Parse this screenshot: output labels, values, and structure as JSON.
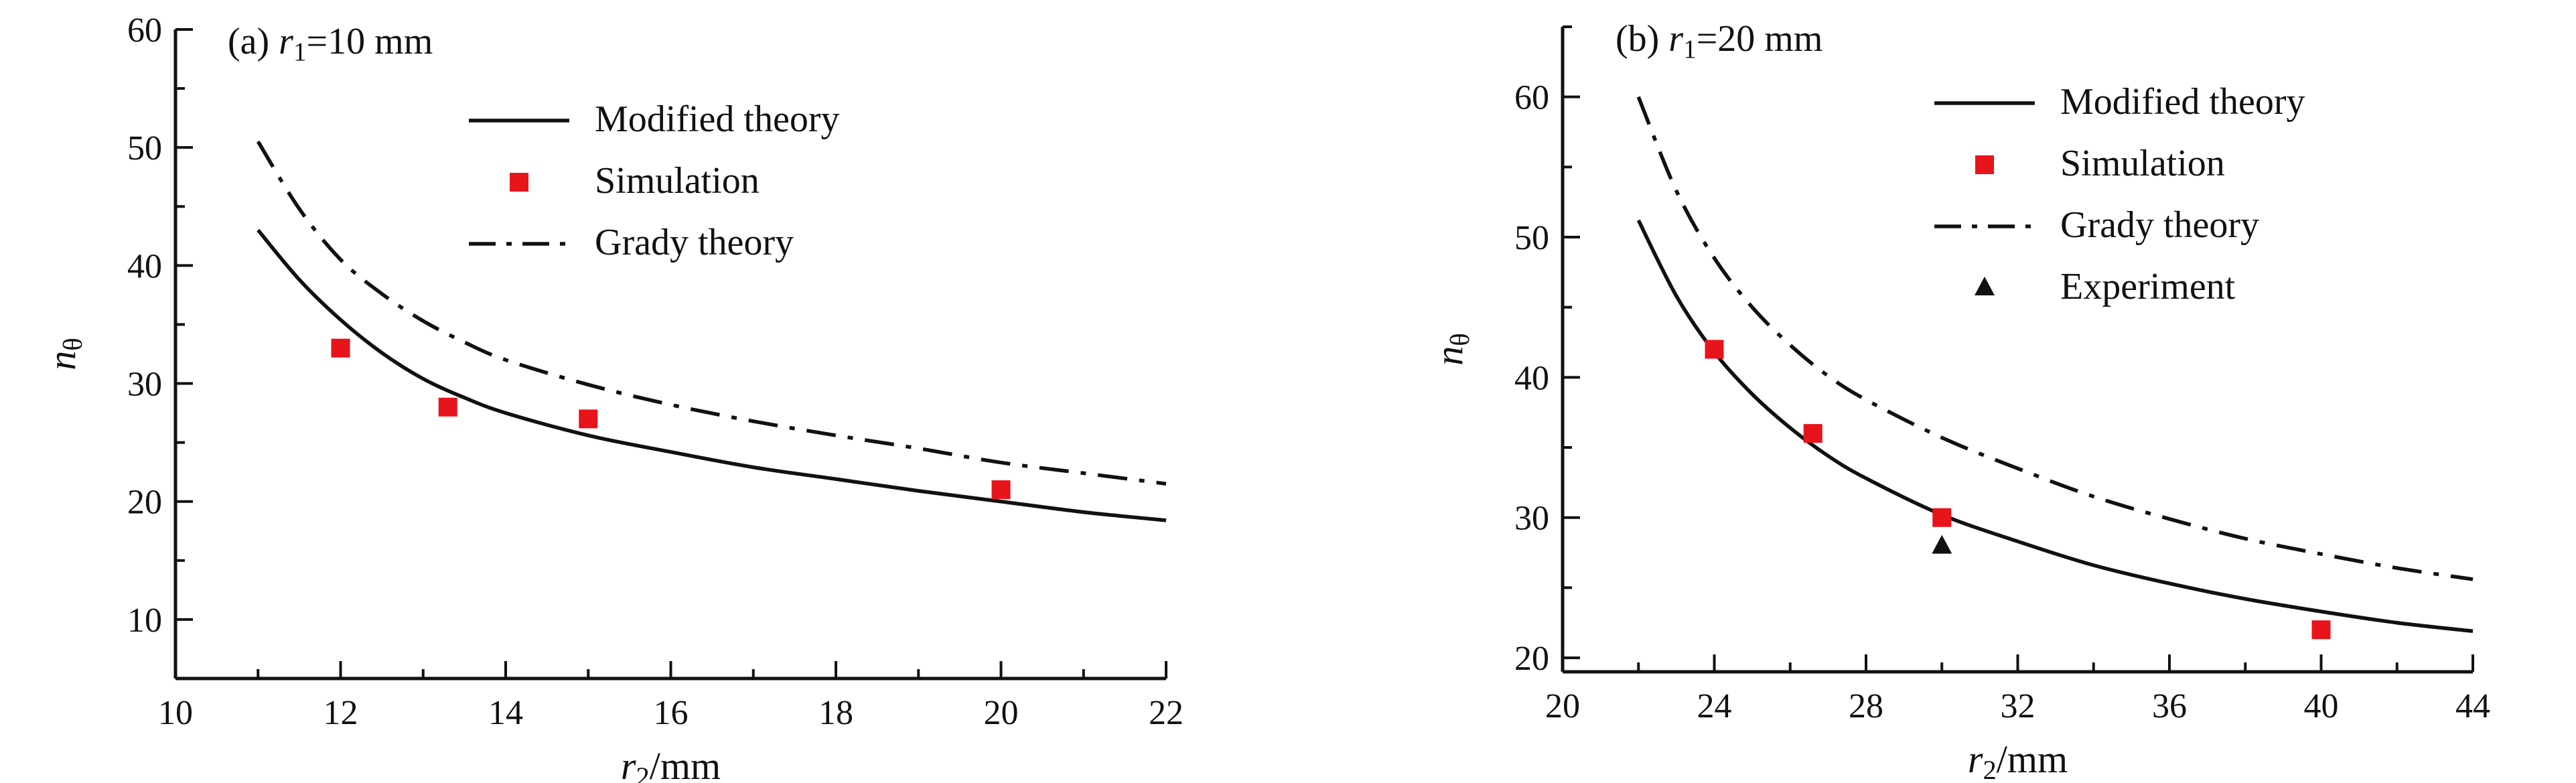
{
  "chart_data": [
    {
      "type": "line",
      "panel_label": {
        "prefix": "(a) ",
        "var": "r",
        "sub": "1",
        "rest": "=10 mm"
      },
      "xlabel": {
        "var": "r",
        "sub": "2",
        "rest": "/mm"
      },
      "ylabel": {
        "var": "n",
        "sub": "θ"
      },
      "xlim": [
        10,
        22
      ],
      "ylim": [
        5,
        60
      ],
      "xticks": [
        10,
        12,
        14,
        16,
        18,
        20,
        22
      ],
      "yticks": [
        10,
        20,
        30,
        40,
        50,
        60
      ],
      "grid": false,
      "legend": {
        "placement": "top-right",
        "entries": [
          {
            "name": "Modified theory",
            "style": "solid",
            "marker": "none"
          },
          {
            "name": "Simulation",
            "style": "none",
            "marker": "square"
          },
          {
            "name": "Grady theory",
            "style": "dash-dot",
            "marker": "none"
          }
        ]
      },
      "series": [
        {
          "name": "Modified theory",
          "style": "solid",
          "x": [
            11,
            11.5,
            12,
            12.5,
            13,
            13.5,
            14,
            15,
            16,
            17,
            18,
            19,
            20,
            21,
            22
          ],
          "y": [
            43,
            38.8,
            35.4,
            32.6,
            30.4,
            28.8,
            27.5,
            25.6,
            24.2,
            22.9,
            21.9,
            20.9,
            20.0,
            19.1,
            18.4
          ]
        },
        {
          "name": "Simulation",
          "style": "square",
          "x": [
            12,
            13.3,
            15,
            20
          ],
          "y": [
            33,
            28,
            27,
            21
          ]
        },
        {
          "name": "Grady theory",
          "style": "dash-dot",
          "x": [
            11,
            11.5,
            12,
            12.5,
            13,
            13.5,
            14,
            15,
            16,
            17,
            18,
            19,
            20,
            21,
            22
          ],
          "y": [
            50.5,
            44.8,
            40.5,
            37.6,
            35.3,
            33.5,
            32.0,
            29.9,
            28.2,
            26.8,
            25.6,
            24.5,
            23.3,
            22.4,
            21.5
          ]
        }
      ]
    },
    {
      "type": "line",
      "panel_label": {
        "prefix": "(b) ",
        "var": "r",
        "sub": "1",
        "rest": "=20 mm"
      },
      "xlabel": {
        "var": "r",
        "sub": "2",
        "rest": "/mm"
      },
      "ylabel": {
        "var": "n",
        "sub": "θ"
      },
      "xlim": [
        20,
        44
      ],
      "ylim": [
        19,
        65
      ],
      "xticks": [
        20,
        24,
        28,
        32,
        36,
        40,
        44
      ],
      "yticks": [
        20,
        30,
        40,
        50,
        60
      ],
      "grid": false,
      "legend": {
        "placement": "top-right",
        "entries": [
          {
            "name": "Modified theory",
            "style": "solid",
            "marker": "none"
          },
          {
            "name": "Simulation",
            "style": "none",
            "marker": "square"
          },
          {
            "name": "Grady theory",
            "style": "dash-dot",
            "marker": "none"
          },
          {
            "name": "Experiment",
            "style": "none",
            "marker": "triangle"
          }
        ]
      },
      "series": [
        {
          "name": "Modified theory",
          "style": "solid",
          "x": [
            22,
            23,
            24,
            25,
            26,
            27,
            28,
            30,
            32,
            34,
            36,
            38,
            40,
            42,
            44
          ],
          "y": [
            51.2,
            45.8,
            41.8,
            38.8,
            36.4,
            34.4,
            32.8,
            30.2,
            28.3,
            26.6,
            25.3,
            24.2,
            23.3,
            22.5,
            21.9
          ]
        },
        {
          "name": "Simulation",
          "style": "square",
          "x": [
            24,
            26.6,
            30,
            40
          ],
          "y": [
            42,
            36,
            30,
            22
          ]
        },
        {
          "name": "Grady theory",
          "style": "dash-dot",
          "x": [
            22,
            23,
            24,
            25,
            26,
            27,
            28,
            30,
            32,
            34,
            36,
            38,
            40,
            42,
            44
          ],
          "y": [
            60.0,
            53.3,
            48.5,
            45.0,
            42.3,
            40.1,
            38.4,
            35.7,
            33.5,
            31.5,
            29.9,
            28.5,
            27.4,
            26.4,
            25.6
          ]
        },
        {
          "name": "Experiment",
          "style": "triangle",
          "x": [
            30
          ],
          "y": [
            28
          ]
        }
      ]
    }
  ]
}
